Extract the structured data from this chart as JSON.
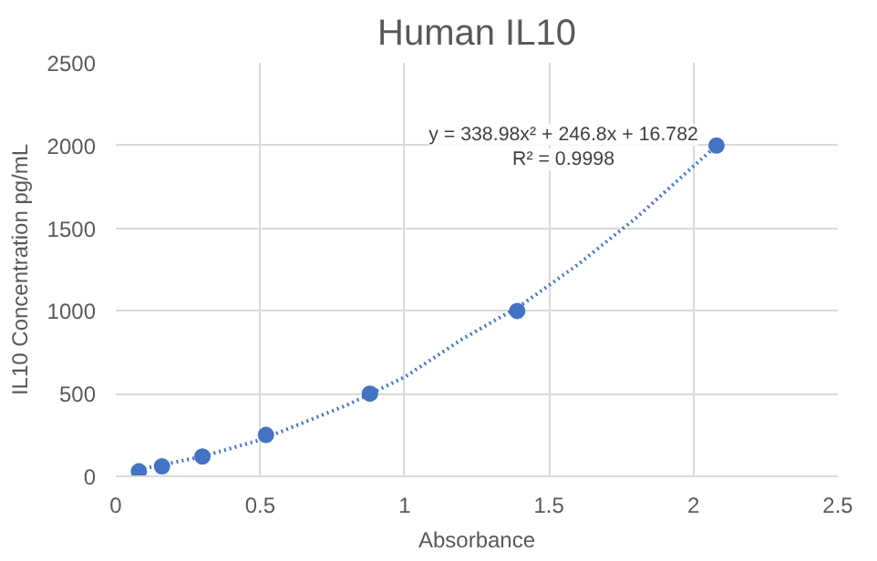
{
  "chart_data": {
    "type": "scatter",
    "title": "Human IL10",
    "xlabel": "Absorbance",
    "ylabel": "IL10 Concentration pg/mL",
    "annotations": [
      "y = 338.98x² + 246.8x + 16.782",
      "R² = 0.9998"
    ],
    "x": [
      0.08,
      0.16,
      0.3,
      0.52,
      0.88,
      1.39,
      2.08
    ],
    "series": [
      {
        "color": "#4472c4",
        "values": [
          30,
          60,
          120,
          250,
          500,
          1000,
          2000
        ],
        "marker": "circle"
      },
      {
        "type": "line",
        "color": "#4472c4",
        "line_style": "dotted",
        "x": [
          0.08,
          0.3,
          0.5,
          0.8,
          1.0,
          1.2,
          1.4,
          1.6,
          1.8,
          2.08
        ],
        "values": [
          40,
          120,
          220,
          430,
          600,
          830,
          1030,
          1280,
          1560,
          2000
        ]
      }
    ],
    "xlim": [
      0,
      2.5
    ],
    "xticks": [
      0,
      0.5,
      1,
      1.5,
      2,
      2.5
    ],
    "ylim": [
      0,
      2500
    ],
    "yticks": [
      0,
      500,
      1000,
      1500,
      2000,
      2500
    ],
    "grid": true
  }
}
